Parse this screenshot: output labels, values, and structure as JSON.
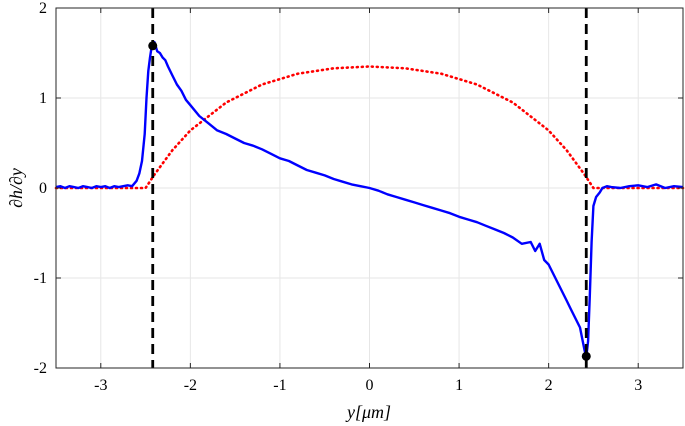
{
  "chart_data": {
    "type": "line",
    "xlabel": "y[μm]",
    "ylabel": "∂h/∂y",
    "xlim": [
      -3.5,
      3.5
    ],
    "ylim": [
      -2,
      2
    ],
    "x_ticks": [
      -3,
      -2,
      -1,
      0,
      1,
      2,
      3
    ],
    "y_ticks": [
      -2,
      -1,
      0,
      1,
      2
    ],
    "grid": true,
    "series": [
      {
        "style": "solid",
        "color": "#0000ff",
        "points": [
          [
            -3.5,
            0.01
          ],
          [
            -3.45,
            0.02
          ],
          [
            -3.4,
            0.0
          ],
          [
            -3.35,
            0.02
          ],
          [
            -3.3,
            0.01
          ],
          [
            -3.25,
            0.0
          ],
          [
            -3.2,
            0.02
          ],
          [
            -3.15,
            0.01
          ],
          [
            -3.1,
            0.0
          ],
          [
            -3.05,
            0.02
          ],
          [
            -3.0,
            0.01
          ],
          [
            -2.95,
            0.02
          ],
          [
            -2.9,
            0.0
          ],
          [
            -2.85,
            0.02
          ],
          [
            -2.8,
            0.01
          ],
          [
            -2.75,
            0.02
          ],
          [
            -2.7,
            0.03
          ],
          [
            -2.65,
            0.02
          ],
          [
            -2.6,
            0.08
          ],
          [
            -2.57,
            0.16
          ],
          [
            -2.54,
            0.3
          ],
          [
            -2.51,
            0.6
          ],
          [
            -2.49,
            1.0
          ],
          [
            -2.47,
            1.3
          ],
          [
            -2.45,
            1.45
          ],
          [
            -2.43,
            1.58
          ],
          [
            -2.4,
            1.62
          ],
          [
            -2.37,
            1.52
          ],
          [
            -2.34,
            1.5
          ],
          [
            -2.31,
            1.45
          ],
          [
            -2.28,
            1.42
          ],
          [
            -2.25,
            1.35
          ],
          [
            -2.2,
            1.25
          ],
          [
            -2.15,
            1.15
          ],
          [
            -2.1,
            1.08
          ],
          [
            -2.05,
            0.98
          ],
          [
            -2.0,
            0.92
          ],
          [
            -1.9,
            0.8
          ],
          [
            -1.8,
            0.72
          ],
          [
            -1.7,
            0.64
          ],
          [
            -1.6,
            0.6
          ],
          [
            -1.5,
            0.55
          ],
          [
            -1.4,
            0.5
          ],
          [
            -1.3,
            0.47
          ],
          [
            -1.2,
            0.43
          ],
          [
            -1.1,
            0.38
          ],
          [
            -1.0,
            0.33
          ],
          [
            -0.9,
            0.3
          ],
          [
            -0.8,
            0.25
          ],
          [
            -0.7,
            0.2
          ],
          [
            -0.6,
            0.17
          ],
          [
            -0.5,
            0.14
          ],
          [
            -0.4,
            0.1
          ],
          [
            -0.3,
            0.07
          ],
          [
            -0.2,
            0.04
          ],
          [
            -0.1,
            0.02
          ],
          [
            0.0,
            0.0
          ],
          [
            0.1,
            -0.03
          ],
          [
            0.2,
            -0.07
          ],
          [
            0.3,
            -0.1
          ],
          [
            0.4,
            -0.13
          ],
          [
            0.5,
            -0.16
          ],
          [
            0.6,
            -0.19
          ],
          [
            0.7,
            -0.22
          ],
          [
            0.8,
            -0.25
          ],
          [
            0.9,
            -0.28
          ],
          [
            1.0,
            -0.32
          ],
          [
            1.1,
            -0.35
          ],
          [
            1.2,
            -0.38
          ],
          [
            1.3,
            -0.42
          ],
          [
            1.4,
            -0.46
          ],
          [
            1.5,
            -0.5
          ],
          [
            1.6,
            -0.55
          ],
          [
            1.7,
            -0.62
          ],
          [
            1.8,
            -0.6
          ],
          [
            1.85,
            -0.7
          ],
          [
            1.9,
            -0.62
          ],
          [
            1.95,
            -0.8
          ],
          [
            2.0,
            -0.85
          ],
          [
            2.05,
            -0.95
          ],
          [
            2.1,
            -1.05
          ],
          [
            2.15,
            -1.15
          ],
          [
            2.2,
            -1.25
          ],
          [
            2.25,
            -1.35
          ],
          [
            2.3,
            -1.45
          ],
          [
            2.35,
            -1.55
          ],
          [
            2.38,
            -1.7
          ],
          [
            2.4,
            -1.8
          ],
          [
            2.42,
            -1.88
          ],
          [
            2.44,
            -1.7
          ],
          [
            2.46,
            -1.2
          ],
          [
            2.48,
            -0.6
          ],
          [
            2.5,
            -0.2
          ],
          [
            2.53,
            -0.1
          ],
          [
            2.57,
            -0.05
          ],
          [
            2.6,
            0.0
          ],
          [
            2.65,
            0.02
          ],
          [
            2.7,
            0.01
          ],
          [
            2.8,
            0.0
          ],
          [
            2.9,
            0.02
          ],
          [
            3.0,
            0.03
          ],
          [
            3.1,
            0.01
          ],
          [
            3.2,
            0.04
          ],
          [
            3.3,
            0.0
          ],
          [
            3.4,
            0.02
          ],
          [
            3.5,
            0.01
          ]
        ]
      },
      {
        "style": "dotted",
        "color": "#ff0000",
        "points": [
          [
            -3.5,
            0.0
          ],
          [
            -2.5,
            0.0
          ],
          [
            -2.4,
            0.15
          ],
          [
            -2.2,
            0.42
          ],
          [
            -2.0,
            0.64
          ],
          [
            -1.6,
            0.95
          ],
          [
            -1.2,
            1.15
          ],
          [
            -0.8,
            1.27
          ],
          [
            -0.4,
            1.33
          ],
          [
            0.0,
            1.35
          ],
          [
            0.4,
            1.33
          ],
          [
            0.8,
            1.27
          ],
          [
            1.2,
            1.15
          ],
          [
            1.6,
            0.95
          ],
          [
            2.0,
            0.64
          ],
          [
            2.2,
            0.42
          ],
          [
            2.4,
            0.15
          ],
          [
            2.5,
            0.0
          ],
          [
            3.5,
            0.0
          ]
        ]
      }
    ],
    "vertical_lines": [
      {
        "x": -2.42,
        "style": "dashed",
        "color": "#000000"
      },
      {
        "x": 2.42,
        "style": "dashed",
        "color": "#000000"
      }
    ],
    "markers": [
      {
        "x": -2.42,
        "y": 1.58,
        "color": "#000000"
      },
      {
        "x": 2.42,
        "y": -1.87,
        "color": "#000000"
      }
    ]
  }
}
